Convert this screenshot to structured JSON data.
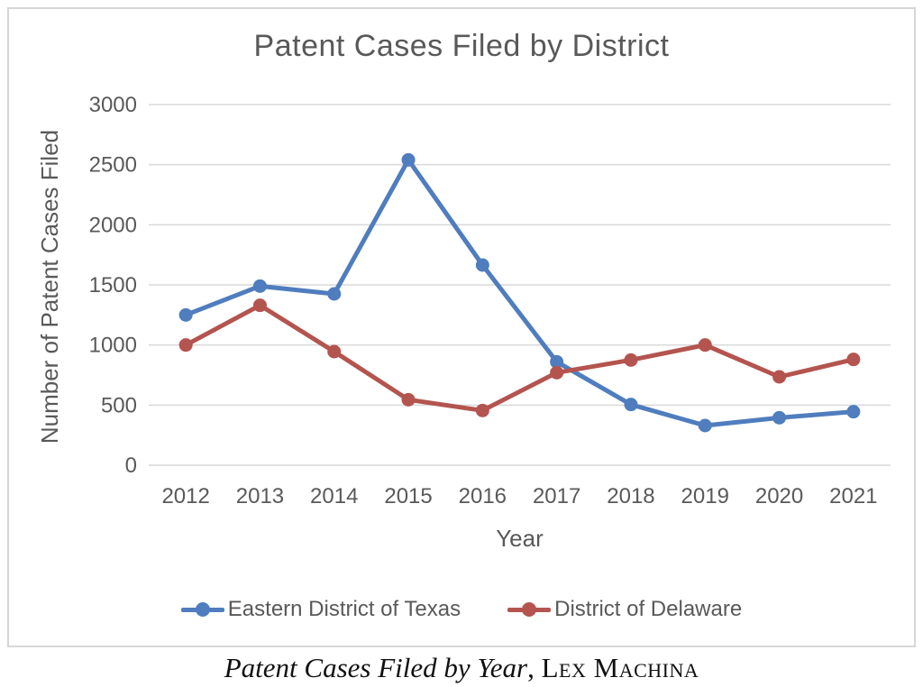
{
  "chart": {
    "title": "Patent Cases Filed by District",
    "y_axis_title": "Number of Patent Cases Filed",
    "x_axis_title": "Year"
  },
  "legend": {
    "items": [
      {
        "label": "Eastern District of Texas",
        "color": "#4F7DBE"
      },
      {
        "label": "District of Delaware",
        "color": "#B4544F"
      }
    ]
  },
  "caption": {
    "italic_part": "Patent Cases Filed by Year",
    "separator": ", ",
    "source": "Lex Machina"
  },
  "colors": {
    "title_text": "#595959",
    "axis_text": "#595959",
    "gridline": "#d9d9d9",
    "chart_border": "#d6d6d6",
    "series_blue": "#4F7DBE",
    "series_red": "#B4544F",
    "background": "#ffffff"
  },
  "chart_data": {
    "type": "line",
    "title": "Patent Cases Filed by District",
    "xlabel": "Year",
    "ylabel": "Number of Patent Cases Filed",
    "categories": [
      "2012",
      "2013",
      "2014",
      "2015",
      "2016",
      "2017",
      "2018",
      "2019",
      "2020",
      "2021"
    ],
    "series": [
      {
        "name": "Eastern District of Texas",
        "color": "#4F7DBE",
        "values": [
          1250,
          1490,
          1425,
          2540,
          1665,
          860,
          505,
          330,
          395,
          445
        ]
      },
      {
        "name": "District of Delaware",
        "color": "#B4544F",
        "values": [
          1000,
          1330,
          945,
          545,
          455,
          770,
          875,
          1000,
          735,
          880
        ]
      }
    ],
    "ylim": [
      0,
      3000
    ],
    "y_ticks": [
      0,
      500,
      1000,
      1500,
      2000,
      2500,
      3000
    ],
    "grid": true,
    "legend_position": "bottom",
    "marker": "circle"
  }
}
